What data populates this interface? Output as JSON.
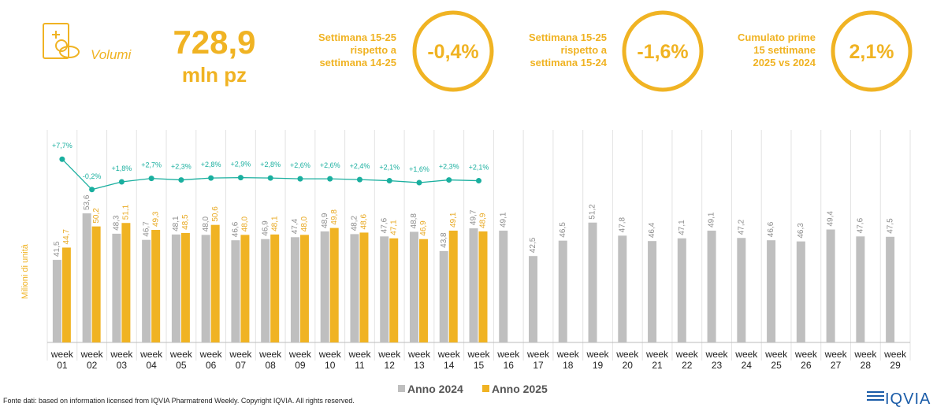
{
  "header": {
    "icon_label": "Volumi",
    "kpi_value": "728,9",
    "kpi_unit": "mln pz",
    "kpis": [
      {
        "label": [
          "Settimana 15-25",
          "rispetto a",
          "settimana 14-25"
        ],
        "value": "-0,4%"
      },
      {
        "label": [
          "Settimana 15-25",
          "rispetto a",
          "settimana 15-24"
        ],
        "value": "-1,6%"
      },
      {
        "label": [
          "Cumulato prime",
          "15 settimane",
          "2025 vs 2024"
        ],
        "value": "2,1%"
      }
    ]
  },
  "chart_data": {
    "type": "bar",
    "y_label": "Milioni di unità",
    "categories": [
      "week 01",
      "week 02",
      "week 03",
      "week 04",
      "week 05",
      "week 06",
      "week 07",
      "week 08",
      "week 09",
      "week 10",
      "week 11",
      "week 12",
      "week 13",
      "week 14",
      "week 15",
      "week 16",
      "week 17",
      "week 18",
      "week 19",
      "week 20",
      "week 21",
      "week 22",
      "week 23",
      "week 24",
      "week 25",
      "week 26",
      "week 27",
      "week 28",
      "week 29"
    ],
    "ylim": [
      20,
      70
    ],
    "y2lim": [
      -40,
      10
    ],
    "series": [
      {
        "name": "Anno 2024",
        "color": "#bfbfbf",
        "values": [
          41.5,
          53.6,
          48.3,
          46.7,
          48.1,
          48.0,
          46.6,
          46.9,
          47.4,
          48.9,
          48.2,
          47.6,
          48.8,
          43.8,
          49.7,
          49.1,
          42.5,
          46.5,
          51.2,
          47.8,
          46.4,
          47.1,
          49.1,
          47.2,
          46.6,
          46.3,
          49.4,
          47.6,
          47.5
        ],
        "value_labels": [
          "41,5",
          "53,6",
          "48,3",
          "46,7",
          "48,1",
          "48,0",
          "46,6",
          "46,9",
          "47,4",
          "48,9",
          "48,2",
          "47,6",
          "48,8",
          "43,8",
          "49,7",
          "49,1",
          "42,5",
          "46,5",
          "51,2",
          "47,8",
          "46,4",
          "47,1",
          "49,1",
          "47,2",
          "46,6",
          "46,3",
          "49,4",
          "47,6",
          "47,5"
        ]
      },
      {
        "name": "Anno 2025",
        "color": "#f0b323",
        "values": [
          44.7,
          50.2,
          51.1,
          49.3,
          48.5,
          50.6,
          48.0,
          48.1,
          48.0,
          49.8,
          48.6,
          47.1,
          46.9,
          49.1,
          48.9,
          null,
          null,
          null,
          null,
          null,
          null,
          null,
          null,
          null,
          null,
          null,
          null,
          null,
          null
        ],
        "value_labels": [
          "44,7",
          "50,2",
          "51,1",
          "49,3",
          "48,5",
          "50,6",
          "48,0",
          "48,1",
          "48,0",
          "49,8",
          "48,6",
          "47,1",
          "46,9",
          "49,1",
          "48,9",
          null,
          null,
          null,
          null,
          null,
          null,
          null,
          null,
          null,
          null,
          null,
          null,
          null,
          null
        ]
      },
      {
        "color": "#1aaf9f",
        "axis": "y2",
        "type": "line",
        "values": [
          7.7,
          -0.2,
          1.8,
          2.7,
          2.3,
          2.8,
          2.9,
          2.8,
          2.6,
          2.6,
          2.4,
          2.1,
          1.6,
          2.3,
          2.1,
          null,
          null,
          null,
          null,
          null,
          null,
          null,
          null,
          null,
          null,
          null,
          null,
          null,
          null
        ],
        "value_labels": [
          "+7,7%",
          "-0,2%",
          "+1,8%",
          "+2,7%",
          "+2,3%",
          "+2,8%",
          "+2,9%",
          "+2,8%",
          "+2,6%",
          "+2,6%",
          "+2,4%",
          "+2,1%",
          "+1,6%",
          "+2,3%",
          "+2,1%",
          null,
          null,
          null,
          null,
          null,
          null,
          null,
          null,
          null,
          null,
          null,
          null,
          null,
          null
        ]
      }
    ],
    "source": "Fonte dati: based on information licensed from IQVIA Pharmatrend Weekly. Copyright IQVIA. All rights reserved.",
    "logo": "IQVIA"
  }
}
